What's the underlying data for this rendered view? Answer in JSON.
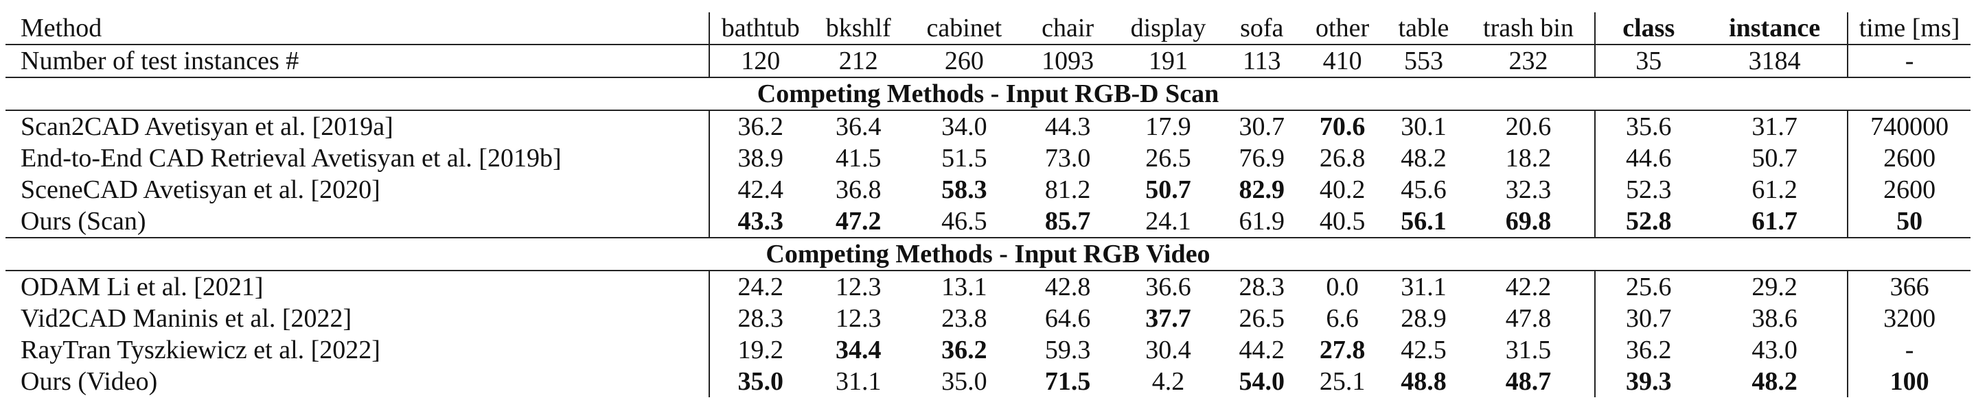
{
  "columns": [
    "Method",
    "bathtub",
    "bkshlf",
    "cabinet",
    "chair",
    "display",
    "sofa",
    "other",
    "table",
    "trash bin",
    "class",
    "instance",
    "time [ms]"
  ],
  "counts_row": {
    "label": "Number of test instances #",
    "values": [
      "120",
      "212",
      "260",
      "1093",
      "191",
      "113",
      "410",
      "553",
      "232",
      "35",
      "3184",
      "-"
    ]
  },
  "sections": [
    {
      "title": "Competing Methods - Input RGB-D Scan",
      "rows": [
        {
          "method": "Scan2CAD Avetisyan et al. [2019a]",
          "values": [
            "36.2",
            "36.4",
            "34.0",
            "44.3",
            "17.9",
            "30.7",
            "70.6",
            "30.1",
            "20.6",
            "35.6",
            "31.7",
            "740000"
          ],
          "bold": [
            false,
            false,
            false,
            false,
            false,
            false,
            true,
            false,
            false,
            false,
            false,
            false
          ]
        },
        {
          "method": "End-to-End CAD Retrieval Avetisyan et al. [2019b]",
          "values": [
            "38.9",
            "41.5",
            "51.5",
            "73.0",
            "26.5",
            "76.9",
            "26.8",
            "48.2",
            "18.2",
            "44.6",
            "50.7",
            "2600"
          ],
          "bold": [
            false,
            false,
            false,
            false,
            false,
            false,
            false,
            false,
            false,
            false,
            false,
            false
          ]
        },
        {
          "method": "SceneCAD Avetisyan et al. [2020]",
          "values": [
            "42.4",
            "36.8",
            "58.3",
            "81.2",
            "50.7",
            "82.9",
            "40.2",
            "45.6",
            "32.3",
            "52.3",
            "61.2",
            "2600"
          ],
          "bold": [
            false,
            false,
            true,
            false,
            true,
            true,
            false,
            false,
            false,
            false,
            false,
            false
          ]
        },
        {
          "method": "Ours (Scan)",
          "values": [
            "43.3",
            "47.2",
            "46.5",
            "85.7",
            "24.1",
            "61.9",
            "40.5",
            "56.1",
            "69.8",
            "52.8",
            "61.7",
            "50"
          ],
          "bold": [
            true,
            true,
            false,
            true,
            false,
            false,
            false,
            true,
            true,
            true,
            true,
            true
          ]
        }
      ]
    },
    {
      "title": "Competing Methods - Input RGB Video",
      "rows": [
        {
          "method": "ODAM Li et al. [2021]",
          "values": [
            "24.2",
            "12.3",
            "13.1",
            "42.8",
            "36.6",
            "28.3",
            "0.0",
            "31.1",
            "42.2",
            "25.6",
            "29.2",
            "366"
          ],
          "bold": [
            false,
            false,
            false,
            false,
            false,
            false,
            false,
            false,
            false,
            false,
            false,
            false
          ]
        },
        {
          "method": "Vid2CAD Maninis et al. [2022]",
          "values": [
            "28.3",
            "12.3",
            "23.8",
            "64.6",
            "37.7",
            "26.5",
            "6.6",
            "28.9",
            "47.8",
            "30.7",
            "38.6",
            "3200"
          ],
          "bold": [
            false,
            false,
            false,
            false,
            true,
            false,
            false,
            false,
            false,
            false,
            false,
            false
          ]
        },
        {
          "method": "RayTran Tyszkiewicz et al. [2022]",
          "values": [
            "19.2",
            "34.4",
            "36.2",
            "59.3",
            "30.4",
            "44.2",
            "27.8",
            "42.5",
            "31.5",
            "36.2",
            "43.0",
            "-"
          ],
          "bold": [
            false,
            true,
            true,
            false,
            false,
            false,
            true,
            false,
            false,
            false,
            false,
            false
          ]
        },
        {
          "method": "Ours (Video)",
          "values": [
            "35.0",
            "31.1",
            "35.0",
            "71.5",
            "4.2",
            "54.0",
            "25.1",
            "48.8",
            "48.7",
            "39.3",
            "48.2",
            "100"
          ],
          "bold": [
            true,
            false,
            false,
            true,
            false,
            true,
            false,
            true,
            true,
            true,
            true,
            true
          ]
        }
      ]
    }
  ]
}
